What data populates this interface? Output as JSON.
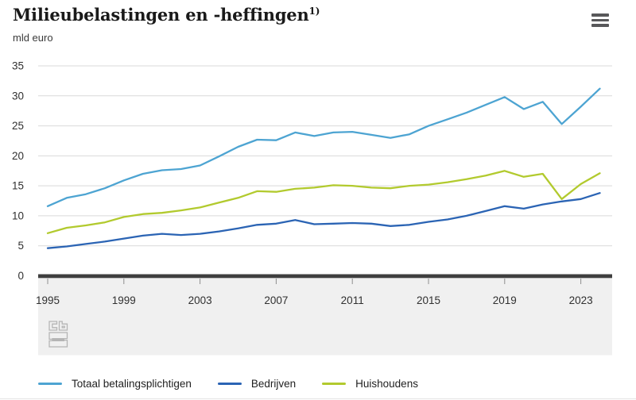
{
  "header": {
    "title": "Milieubelastingen en -heffingen",
    "footnote_marker": "1)",
    "unit": "mld euro"
  },
  "icons": {
    "menu": "hamburger-menu",
    "logo": "cbs-logo"
  },
  "colors": {
    "totaal": "#4DA4D2",
    "bedrijven": "#2B64B4",
    "huishoudens": "#B2CA2E",
    "axis": "#3f3f3f",
    "gridline": "#d9d9d9",
    "band": "#f0f0f0",
    "tick": "#8f8f8f"
  },
  "chart_data": {
    "type": "line",
    "title": "Milieubelastingen en -heffingen",
    "ylabel": "mld euro",
    "xlabel": "",
    "ylim": [
      0,
      35
    ],
    "yticks": [
      0,
      5,
      10,
      15,
      20,
      25,
      30,
      35
    ],
    "xticks": [
      1995,
      1999,
      2003,
      2007,
      2011,
      2015,
      2019,
      2023
    ],
    "grid": true,
    "legend_position": "bottom",
    "x": [
      1995,
      1996,
      1997,
      1998,
      1999,
      2000,
      2001,
      2002,
      2003,
      2004,
      2005,
      2006,
      2007,
      2008,
      2009,
      2010,
      2011,
      2012,
      2013,
      2014,
      2015,
      2016,
      2017,
      2018,
      2019,
      2020,
      2021,
      2022,
      2023,
      2024
    ],
    "series": [
      {
        "name": "Totaal betalingsplichtigen",
        "color": "#4DA4D2",
        "values": [
          11.6,
          13.0,
          13.6,
          14.6,
          15.9,
          17.0,
          17.6,
          17.8,
          18.4,
          19.9,
          21.5,
          22.7,
          22.6,
          23.9,
          23.3,
          23.9,
          24.0,
          23.5,
          23.0,
          23.6,
          25.0,
          26.1,
          27.2,
          28.5,
          29.8,
          27.8,
          29.0,
          25.3,
          28.2,
          31.2
        ]
      },
      {
        "name": "Bedrijven",
        "color": "#2B64B4",
        "values": [
          4.6,
          4.9,
          5.3,
          5.7,
          6.2,
          6.7,
          7.0,
          6.8,
          7.0,
          7.4,
          7.9,
          8.5,
          8.7,
          9.3,
          8.6,
          8.7,
          8.8,
          8.7,
          8.3,
          8.5,
          9.0,
          9.4,
          10.0,
          10.8,
          11.6,
          11.2,
          11.9,
          12.4,
          12.8,
          13.8
        ]
      },
      {
        "name": "Huishoudens",
        "color": "#B2CA2E",
        "values": [
          7.1,
          8.0,
          8.4,
          8.9,
          9.8,
          10.3,
          10.5,
          10.9,
          11.4,
          12.2,
          13.0,
          14.1,
          14.0,
          14.5,
          14.7,
          15.1,
          15.0,
          14.7,
          14.6,
          15.0,
          15.2,
          15.6,
          16.1,
          16.7,
          17.5,
          16.5,
          17.0,
          12.8,
          15.3,
          17.1
        ]
      }
    ]
  }
}
